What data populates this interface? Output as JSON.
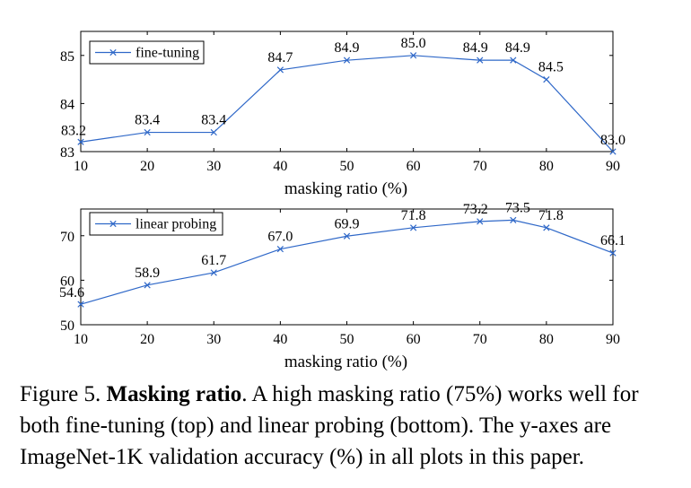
{
  "chart_data": [
    {
      "type": "line",
      "xlabel": "masking ratio (%)",
      "ylabel": "",
      "x": [
        10,
        20,
        30,
        40,
        50,
        60,
        70,
        75,
        80,
        90
      ],
      "xticks": [
        "10",
        "20",
        "30",
        "40",
        "50",
        "60",
        "70",
        "80",
        "90"
      ],
      "xtick_values": [
        10,
        20,
        30,
        40,
        50,
        60,
        70,
        80,
        90
      ],
      "xlim": [
        10,
        90
      ],
      "ylim": [
        83,
        85.5
      ],
      "yticks": [
        "83",
        "84",
        "85"
      ],
      "ytick_values": [
        83,
        84,
        85
      ],
      "legend_position": "top-left",
      "grid": false,
      "series": [
        {
          "name": "fine-tuning",
          "values": [
            83.2,
            83.4,
            83.4,
            84.7,
            84.9,
            85.0,
            84.9,
            84.9,
            84.5,
            83.0
          ],
          "labels": [
            "83.2",
            "83.4",
            "83.4",
            "84.7",
            "84.9",
            "85.0",
            "84.9",
            "84.9",
            "84.5",
            "83.0"
          ]
        }
      ],
      "color": "#2f68c8"
    },
    {
      "type": "line",
      "xlabel": "masking ratio (%)",
      "ylabel": "",
      "x": [
        10,
        20,
        30,
        40,
        50,
        60,
        70,
        75,
        80,
        90
      ],
      "xticks": [
        "10",
        "20",
        "30",
        "40",
        "50",
        "60",
        "70",
        "80",
        "90"
      ],
      "xtick_values": [
        10,
        20,
        30,
        40,
        50,
        60,
        70,
        80,
        90
      ],
      "xlim": [
        10,
        90
      ],
      "ylim": [
        50,
        76
      ],
      "yticks": [
        "50",
        "60",
        "70"
      ],
      "ytick_values": [
        50,
        60,
        70
      ],
      "legend_position": "top-left",
      "grid": false,
      "series": [
        {
          "name": "linear probing",
          "values": [
            54.6,
            58.9,
            61.7,
            67.0,
            69.9,
            71.8,
            73.2,
            73.5,
            71.8,
            66.1
          ],
          "labels": [
            "54.6",
            "58.9",
            "61.7",
            "67.0",
            "69.9",
            "71.8",
            "73.2",
            "73.5",
            "71.8",
            "66.1"
          ]
        }
      ],
      "color": "#2f68c8"
    }
  ],
  "caption": {
    "prefix": "Figure 5.",
    "title": "Masking ratio",
    "body": ". A high masking ratio (75%) works well for both fine-tuning (top) and linear probing (bottom). The y-axes are ImageNet-1K validation accuracy (%) in all plots in this paper."
  }
}
